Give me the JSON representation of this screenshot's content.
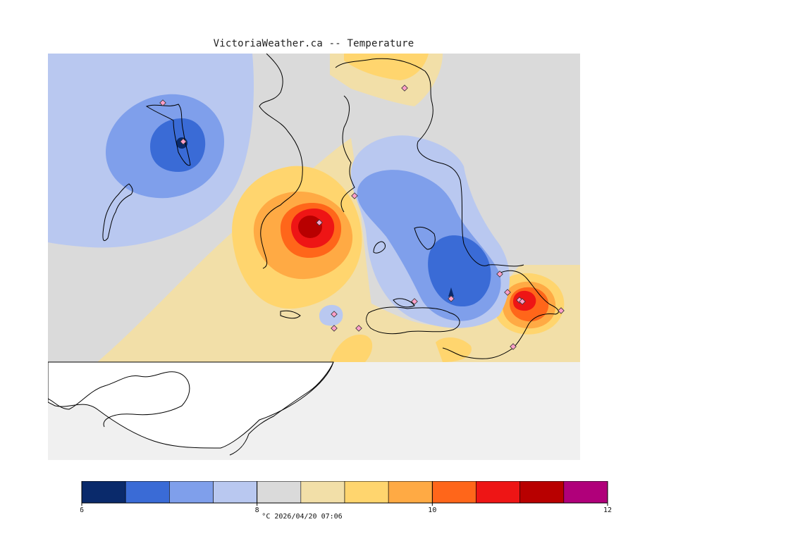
{
  "title": "VictoriaWeather.ca -- Temperature",
  "legend": {
    "min": 6,
    "max": 12,
    "bins": [
      {
        "from": 6.0,
        "to": 6.5,
        "color": "#0a2a6b"
      },
      {
        "from": 6.5,
        "to": 7.0,
        "color": "#3a6bd6"
      },
      {
        "from": 7.0,
        "to": 7.5,
        "color": "#7f9feb"
      },
      {
        "from": 7.5,
        "to": 8.0,
        "color": "#b9c8f0"
      },
      {
        "from": 8.0,
        "to": 8.5,
        "color": "#dadada"
      },
      {
        "from": 8.5,
        "to": 9.0,
        "color": "#f2dfa8"
      },
      {
        "from": 9.0,
        "to": 9.5,
        "color": "#ffd56e"
      },
      {
        "from": 9.5,
        "to": 10.0,
        "color": "#ffaa44"
      },
      {
        "from": 10.0,
        "to": 10.5,
        "color": "#ff661a"
      },
      {
        "from": 10.5,
        "to": 11.0,
        "color": "#ee1515"
      },
      {
        "from": 11.0,
        "to": 11.5,
        "color": "#b80000"
      },
      {
        "from": 11.5,
        "to": 12.0,
        "color": "#b0007a"
      }
    ],
    "tick_labels": [
      {
        "value": 6,
        "label": "6"
      },
      {
        "value": 8,
        "label": "8"
      },
      {
        "value": 10,
        "label": "10"
      },
      {
        "value": 12,
        "label": "12"
      }
    ],
    "unit": "°C",
    "timestamp": "2026/04/20 07:06",
    "caption": "°C  2026/04/20 07:06"
  },
  "colors": {
    "nodata": "#f0f0f0",
    "coast": "#000000",
    "station_fill": "#ff9fc8",
    "station_stroke": "#333333"
  }
}
